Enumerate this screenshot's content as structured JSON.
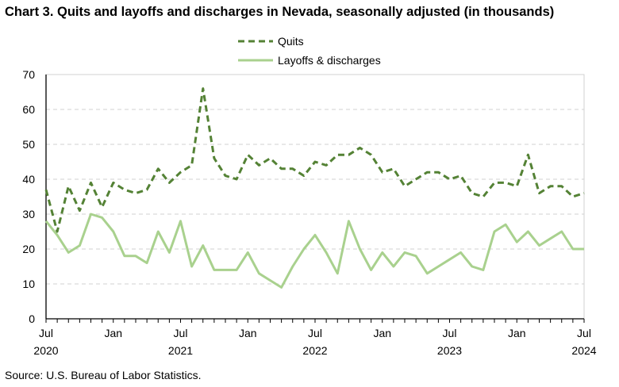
{
  "chart_data": {
    "type": "line",
    "title": "Chart 3. Quits and layoffs and discharges in Nevada, seasonally adjusted (in thousands)",
    "source": "Source: U.S. Bureau of Labor Statistics.",
    "xlabel": "",
    "ylabel": "",
    "ylim": [
      0,
      70
    ],
    "yticks": [
      0,
      10,
      20,
      30,
      40,
      50,
      60,
      70
    ],
    "grid": true,
    "legend_position": "top-center",
    "x_start": "Jul 2020",
    "x_months": 49,
    "xtick_labels": [
      {
        "month_index": 0,
        "label": "Jul",
        "year": "2020"
      },
      {
        "month_index": 6,
        "label": "Jan",
        "year": ""
      },
      {
        "month_index": 12,
        "label": "Jul",
        "year": "2021"
      },
      {
        "month_index": 18,
        "label": "Jan",
        "year": ""
      },
      {
        "month_index": 24,
        "label": "Jul",
        "year": "2022"
      },
      {
        "month_index": 30,
        "label": "Jan",
        "year": ""
      },
      {
        "month_index": 36,
        "label": "Jul",
        "year": "2023"
      },
      {
        "month_index": 42,
        "label": "Jan",
        "year": ""
      },
      {
        "month_index": 48,
        "label": "Jul",
        "year": "2024"
      }
    ],
    "series": [
      {
        "name": "Quits",
        "color": "#548235",
        "dashed": true,
        "values": [
          37,
          25,
          38,
          31,
          39,
          32,
          39,
          37,
          36,
          37,
          43,
          39,
          42,
          44,
          66,
          46,
          41,
          40,
          47,
          44,
          46,
          43,
          43,
          41,
          45,
          44,
          47,
          47,
          49,
          47,
          42,
          43,
          38,
          40,
          42,
          42,
          40,
          41,
          36,
          35,
          39,
          39,
          38,
          47,
          36,
          38,
          38,
          35,
          36
        ]
      },
      {
        "name": "Layoffs & discharges",
        "color": "#a9d18e",
        "dashed": false,
        "values": [
          28,
          24,
          19,
          21,
          30,
          29,
          25,
          18,
          18,
          16,
          25,
          19,
          28,
          15,
          21,
          14,
          14,
          14,
          19,
          13,
          11,
          9,
          15,
          20,
          24,
          19,
          13,
          28,
          20,
          14,
          19,
          15,
          19,
          18,
          13,
          15,
          17,
          19,
          15,
          14,
          25,
          27,
          22,
          25,
          21,
          23,
          25,
          20,
          20
        ]
      }
    ]
  }
}
